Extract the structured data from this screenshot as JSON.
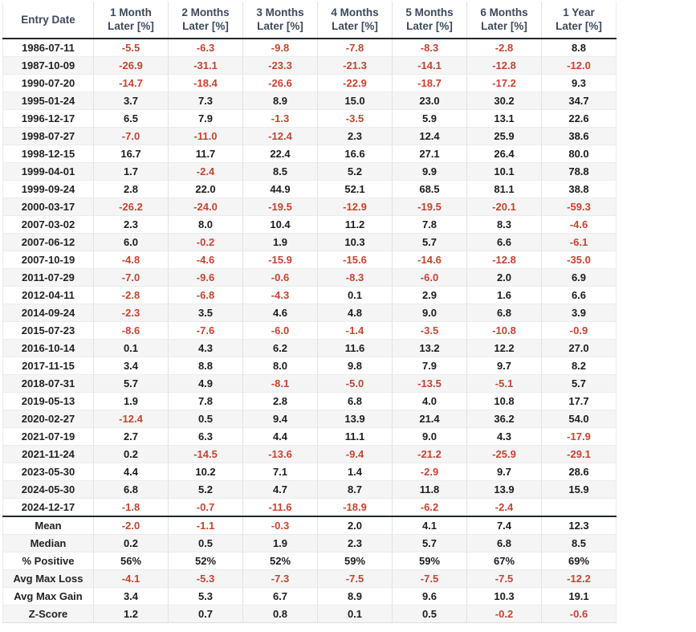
{
  "colors": {
    "negative": "#c5432e",
    "positive": "#1c1c1c",
    "header_text": "#3c4a5c",
    "stripe": "#f5f5f6",
    "strong_border": "#23272e"
  },
  "chart_data": {
    "type": "table",
    "title": "",
    "headers": [
      {
        "lines": [
          "Entry Date"
        ]
      },
      {
        "lines": [
          "1 Month",
          "Later [%]"
        ]
      },
      {
        "lines": [
          "2 Months",
          "Later [%]"
        ]
      },
      {
        "lines": [
          "3 Months",
          "Later [%]"
        ]
      },
      {
        "lines": [
          "4 Months",
          "Later [%]"
        ]
      },
      {
        "lines": [
          "5 Months",
          "Later [%]"
        ]
      },
      {
        "lines": [
          "6 Months",
          "Later [%]"
        ]
      },
      {
        "lines": [
          "1 Year",
          "Later [%]"
        ]
      }
    ],
    "rows": [
      {
        "label": "1986-07-11",
        "values": [
          "-5.5",
          "-6.3",
          "-9.8",
          "-7.8",
          "-8.3",
          "-2.8",
          "8.8"
        ]
      },
      {
        "label": "1987-10-09",
        "values": [
          "-26.9",
          "-31.1",
          "-23.3",
          "-21.3",
          "-14.1",
          "-12.8",
          "-12.0"
        ]
      },
      {
        "label": "1990-07-20",
        "values": [
          "-14.7",
          "-18.4",
          "-26.6",
          "-22.9",
          "-18.7",
          "-17.2",
          "9.3"
        ]
      },
      {
        "label": "1995-01-24",
        "values": [
          "3.7",
          "7.3",
          "8.9",
          "15.0",
          "23.0",
          "30.2",
          "34.7"
        ]
      },
      {
        "label": "1996-12-17",
        "values": [
          "6.5",
          "7.9",
          "-1.3",
          "-3.5",
          "5.9",
          "13.1",
          "22.6"
        ]
      },
      {
        "label": "1998-07-27",
        "values": [
          "-7.0",
          "-11.0",
          "-12.4",
          "2.3",
          "12.4",
          "25.9",
          "38.6"
        ]
      },
      {
        "label": "1998-12-15",
        "values": [
          "16.7",
          "11.7",
          "22.4",
          "16.6",
          "27.1",
          "26.4",
          "80.0"
        ]
      },
      {
        "label": "1999-04-01",
        "values": [
          "1.7",
          "-2.4",
          "8.5",
          "5.2",
          "9.9",
          "10.1",
          "78.8"
        ]
      },
      {
        "label": "1999-09-24",
        "values": [
          "2.8",
          "22.0",
          "44.9",
          "52.1",
          "68.5",
          "81.1",
          "38.8"
        ]
      },
      {
        "label": "2000-03-17",
        "values": [
          "-26.2",
          "-24.0",
          "-19.5",
          "-12.9",
          "-19.5",
          "-20.1",
          "-59.3"
        ]
      },
      {
        "label": "2007-03-02",
        "values": [
          "2.3",
          "8.0",
          "10.4",
          "11.2",
          "7.8",
          "8.3",
          "-4.6"
        ]
      },
      {
        "label": "2007-06-12",
        "values": [
          "6.0",
          "-0.2",
          "1.9",
          "10.3",
          "5.7",
          "6.6",
          "-6.1"
        ]
      },
      {
        "label": "2007-10-19",
        "values": [
          "-4.8",
          "-4.6",
          "-15.9",
          "-15.6",
          "-14.6",
          "-12.8",
          "-35.0"
        ]
      },
      {
        "label": "2011-07-29",
        "values": [
          "-7.0",
          "-9.6",
          "-0.6",
          "-8.3",
          "-6.0",
          "2.0",
          "6.9"
        ]
      },
      {
        "label": "2012-04-11",
        "values": [
          "-2.8",
          "-6.8",
          "-4.3",
          "0.1",
          "2.9",
          "1.6",
          "6.6"
        ]
      },
      {
        "label": "2014-09-24",
        "values": [
          "-2.3",
          "3.5",
          "4.6",
          "4.8",
          "9.0",
          "6.8",
          "3.9"
        ]
      },
      {
        "label": "2015-07-23",
        "values": [
          "-8.6",
          "-7.6",
          "-6.0",
          "-1.4",
          "-3.5",
          "-10.8",
          "-0.9"
        ]
      },
      {
        "label": "2016-10-14",
        "values": [
          "0.1",
          "4.3",
          "6.2",
          "11.6",
          "13.2",
          "12.2",
          "27.0"
        ]
      },
      {
        "label": "2017-11-15",
        "values": [
          "3.4",
          "8.8",
          "8.0",
          "9.8",
          "7.9",
          "9.7",
          "8.2"
        ]
      },
      {
        "label": "2018-07-31",
        "values": [
          "5.7",
          "4.9",
          "-8.1",
          "-5.0",
          "-13.5",
          "-5.1",
          "5.7"
        ]
      },
      {
        "label": "2019-05-13",
        "values": [
          "1.9",
          "7.8",
          "2.8",
          "6.8",
          "4.0",
          "10.8",
          "17.7"
        ]
      },
      {
        "label": "2020-02-27",
        "values": [
          "-12.4",
          "0.5",
          "9.4",
          "13.9",
          "21.4",
          "36.2",
          "54.0"
        ]
      },
      {
        "label": "2021-07-19",
        "values": [
          "2.7",
          "6.3",
          "4.4",
          "11.1",
          "9.0",
          "4.3",
          "-17.9"
        ]
      },
      {
        "label": "2021-11-24",
        "values": [
          "0.2",
          "-14.5",
          "-13.6",
          "-9.4",
          "-21.2",
          "-25.9",
          "-29.1"
        ]
      },
      {
        "label": "2023-05-30",
        "values": [
          "4.4",
          "10.2",
          "7.1",
          "1.4",
          "-2.9",
          "9.7",
          "28.6"
        ]
      },
      {
        "label": "2024-05-30",
        "values": [
          "6.8",
          "5.2",
          "4.7",
          "8.7",
          "11.8",
          "13.9",
          "15.9"
        ]
      },
      {
        "label": "2024-12-17",
        "values": [
          "-1.8",
          "-0.7",
          "-11.6",
          "-18.9",
          "-6.2",
          "-2.4",
          ""
        ]
      }
    ],
    "summary": [
      {
        "label": "Mean",
        "values": [
          "-2.0",
          "-1.1",
          "-0.3",
          "2.0",
          "4.1",
          "7.4",
          "12.3"
        ]
      },
      {
        "label": "Median",
        "values": [
          "0.2",
          "0.5",
          "1.9",
          "2.3",
          "5.7",
          "6.8",
          "8.5"
        ]
      },
      {
        "label": "% Positive",
        "values": [
          "56%",
          "52%",
          "52%",
          "59%",
          "59%",
          "67%",
          "69%"
        ]
      },
      {
        "label": "Avg Max Loss",
        "values": [
          "-4.1",
          "-5.3",
          "-7.3",
          "-7.5",
          "-7.5",
          "-7.5",
          "-12.2"
        ]
      },
      {
        "label": "Avg Max Gain",
        "values": [
          "3.4",
          "5.3",
          "6.7",
          "8.9",
          "9.6",
          "10.3",
          "19.1"
        ]
      },
      {
        "label": "Z-Score",
        "values": [
          "1.2",
          "0.7",
          "0.8",
          "0.1",
          "0.5",
          "-0.2",
          "-0.6"
        ]
      }
    ]
  }
}
